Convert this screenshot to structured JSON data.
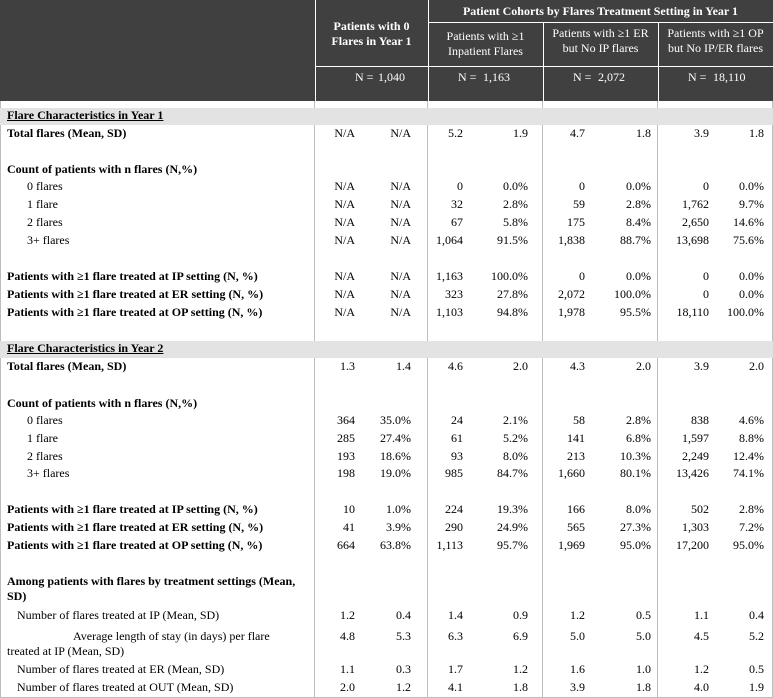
{
  "header": {
    "group_title": "Patient Cohorts by Flares Treatment Setting in Year 1",
    "cohorts": [
      {
        "title": "Patients with 0 Flares in Year 1",
        "n_label": "N =",
        "n": "1,040"
      },
      {
        "title": "Patients with ≥1 Inpatient Flares",
        "n_label": "N =",
        "n": "1,163"
      },
      {
        "title": "Patients with ≥1 ER but No IP flares",
        "n_label": "N =",
        "n": "2,072"
      },
      {
        "title": "Patients with ≥1 OP but No IP/ER flares",
        "n_label": "N =",
        "n": "18,110"
      }
    ]
  },
  "table": {
    "rows": [
      {
        "label": "Flare Characteristics in Year 1"
      },
      {
        "label": "Total flares (Mean, SD)",
        "values": [
          "N/A",
          "N/A",
          "5.2",
          "1.9",
          "4.7",
          "1.8",
          "3.9",
          "1.8"
        ]
      },
      {
        "label": "Count of patients with n flares (N,%)"
      },
      {
        "label": "0 flares",
        "values": [
          "N/A",
          "N/A",
          "0",
          "0.0%",
          "0",
          "0.0%",
          "0",
          "0.0%"
        ]
      },
      {
        "label": "1 flare",
        "values": [
          "N/A",
          "N/A",
          "32",
          "2.8%",
          "59",
          "2.8%",
          "1,762",
          "9.7%"
        ]
      },
      {
        "label": "2 flares",
        "values": [
          "N/A",
          "N/A",
          "67",
          "5.8%",
          "175",
          "8.4%",
          "2,650",
          "14.6%"
        ]
      },
      {
        "label": "3+ flares",
        "values": [
          "N/A",
          "N/A",
          "1,064",
          "91.5%",
          "1,838",
          "88.7%",
          "13,698",
          "75.6%"
        ]
      },
      {
        "label": "Patients with ≥1 flare treated at IP setting (N, %)",
        "values": [
          "N/A",
          "N/A",
          "1,163",
          "100.0%",
          "0",
          "0.0%",
          "0",
          "0.0%"
        ]
      },
      {
        "label": "Patients with ≥1 flare treated at ER setting (N, %)",
        "values": [
          "N/A",
          "N/A",
          "323",
          "27.8%",
          "2,072",
          "100.0%",
          "0",
          "0.0%"
        ]
      },
      {
        "label": "Patients with ≥1 flare treated at OP setting (N, %)",
        "values": [
          "N/A",
          "N/A",
          "1,103",
          "94.8%",
          "1,978",
          "95.5%",
          "18,110",
          "100.0%"
        ]
      },
      {
        "label": "Flare Characteristics in Year 2"
      },
      {
        "label": "Total flares (Mean, SD)",
        "values": [
          "1.3",
          "1.4",
          "4.6",
          "2.0",
          "4.3",
          "2.0",
          "3.9",
          "2.0"
        ]
      },
      {
        "label": "Count of patients with n flares (N,%)"
      },
      {
        "label": "0 flares",
        "values": [
          "364",
          "35.0%",
          "24",
          "2.1%",
          "58",
          "2.8%",
          "838",
          "4.6%"
        ]
      },
      {
        "label": "1 flare",
        "values": [
          "285",
          "27.4%",
          "61",
          "5.2%",
          "141",
          "6.8%",
          "1,597",
          "8.8%"
        ]
      },
      {
        "label": "2 flares",
        "values": [
          "193",
          "18.6%",
          "93",
          "8.0%",
          "213",
          "10.3%",
          "2,249",
          "12.4%"
        ]
      },
      {
        "label": "3+ flares",
        "values": [
          "198",
          "19.0%",
          "985",
          "84.7%",
          "1,660",
          "80.1%",
          "13,426",
          "74.1%"
        ]
      },
      {
        "label": "Patients with ≥1 flare treated at IP setting (N, %)",
        "values": [
          "10",
          "1.0%",
          "224",
          "19.3%",
          "166",
          "8.0%",
          "502",
          "2.8%"
        ]
      },
      {
        "label": "Patients with ≥1 flare treated at ER setting (N, %)",
        "values": [
          "41",
          "3.9%",
          "290",
          "24.9%",
          "565",
          "27.3%",
          "1,303",
          "7.2%"
        ]
      },
      {
        "label": "Patients with ≥1 flare treated at OP setting (N, %)",
        "values": [
          "664",
          "63.8%",
          "1,113",
          "95.7%",
          "1,969",
          "95.0%",
          "17,200",
          "95.0%"
        ]
      },
      {
        "label": "Among patients with flares by treatment settings (Mean, SD)"
      },
      {
        "label": "Number of flares treated at IP (Mean, SD)",
        "values": [
          "1.2",
          "0.4",
          "1.4",
          "0.9",
          "1.2",
          "0.5",
          "1.1",
          "0.4"
        ]
      },
      {
        "label": "Average length of stay (in days) per flare treated at IP (Mean, SD)",
        "values": [
          "4.8",
          "5.3",
          "6.3",
          "6.9",
          "5.0",
          "5.0",
          "4.5",
          "5.2"
        ]
      },
      {
        "label": "Number of flares treated at ER (Mean, SD)",
        "values": [
          "1.1",
          "0.3",
          "1.7",
          "1.2",
          "1.6",
          "1.0",
          "1.2",
          "0.5"
        ]
      },
      {
        "label": "Number of flares treated at OUT (Mean, SD)",
        "values": [
          "2.0",
          "1.2",
          "4.1",
          "1.8",
          "3.9",
          "1.8",
          "4.0",
          "1.9"
        ]
      }
    ]
  }
}
